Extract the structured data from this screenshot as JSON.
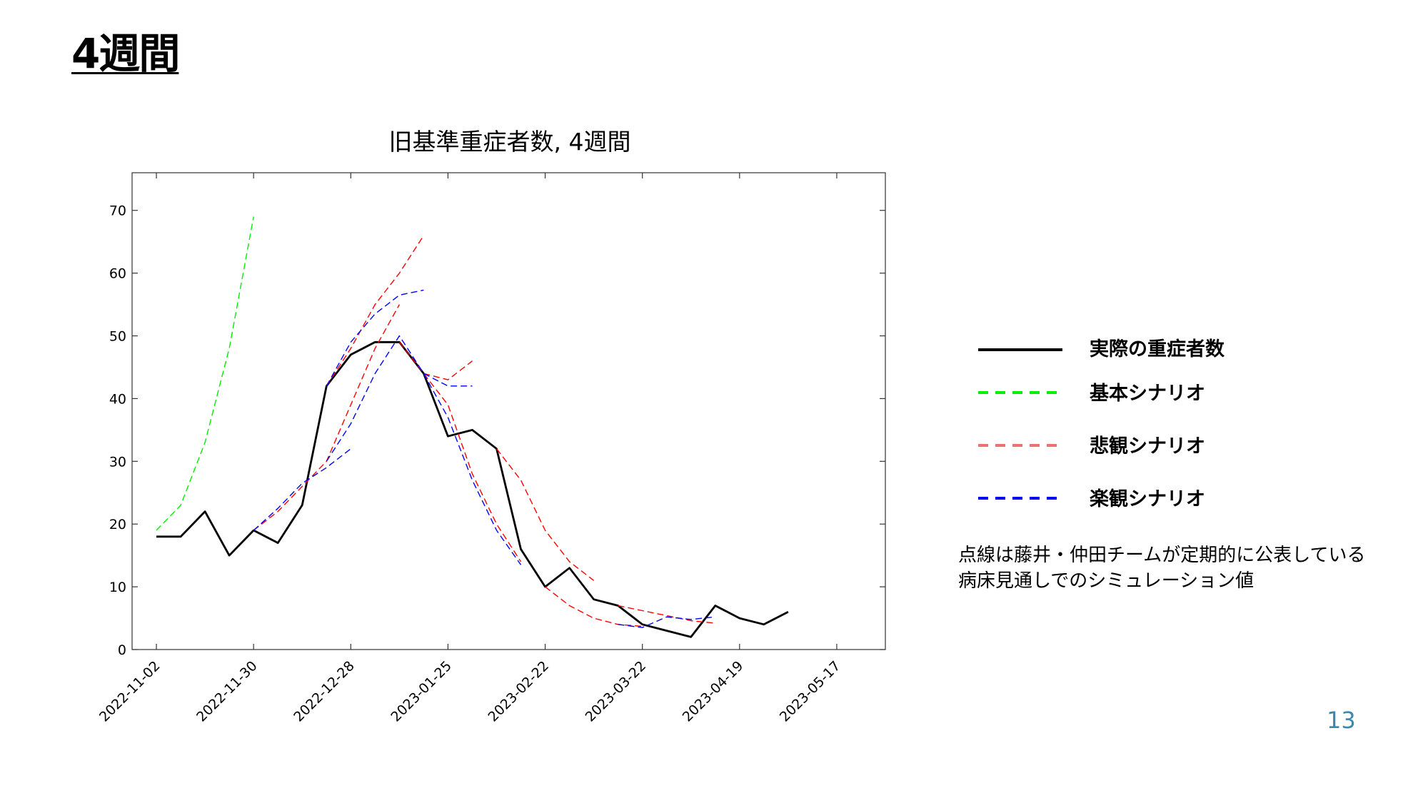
{
  "slide": {
    "title": "4週間",
    "page_number": "13"
  },
  "legend": {
    "items": [
      {
        "label": "実際の重症者数",
        "color": "#000000",
        "dashed": false
      },
      {
        "label": "基本シナリオ",
        "color": "#00ee00",
        "dashed": true
      },
      {
        "label": "悲観シナリオ",
        "color": "#f07070",
        "dashed": true
      },
      {
        "label": "楽観シナリオ",
        "color": "#0000ee",
        "dashed": true
      }
    ]
  },
  "note": {
    "line1": "点線は藤井・仲田チームが定期的に公表している",
    "line2": "病床見通しでのシミュレーション値"
  },
  "chart_data": {
    "type": "line",
    "title": "旧基準重症者数, 4週間",
    "xlabel": "",
    "ylabel": "",
    "x_ticks": [
      "2022-11-02",
      "2022-11-30",
      "2022-12-28",
      "2023-01-25",
      "2023-02-22",
      "2023-03-22",
      "2023-04-19",
      "2023-05-17"
    ],
    "xlim": [
      "2022-10-26",
      "2023-05-31"
    ],
    "ylim": [
      0,
      76
    ],
    "y_ticks": [
      0,
      10,
      20,
      30,
      40,
      50,
      60,
      70
    ],
    "grid": false,
    "series": [
      {
        "name": "実際の重症者数",
        "color": "#000000",
        "style": "solid",
        "points": [
          [
            "2022-11-02",
            18
          ],
          [
            "2022-11-09",
            18
          ],
          [
            "2022-11-16",
            22
          ],
          [
            "2022-11-23",
            15
          ],
          [
            "2022-11-30",
            19
          ],
          [
            "2022-12-07",
            17
          ],
          [
            "2022-12-14",
            23
          ],
          [
            "2022-12-21",
            42
          ],
          [
            "2022-12-28",
            47
          ],
          [
            "2023-01-04",
            49
          ],
          [
            "2023-01-11",
            49
          ],
          [
            "2023-01-18",
            44
          ],
          [
            "2023-01-25",
            34
          ],
          [
            "2023-02-01",
            35
          ],
          [
            "2023-02-08",
            32
          ],
          [
            "2023-02-15",
            16
          ],
          [
            "2023-02-22",
            10
          ],
          [
            "2023-03-01",
            13
          ],
          [
            "2023-03-08",
            8
          ],
          [
            "2023-03-15",
            7
          ],
          [
            "2023-03-22",
            4
          ],
          [
            "2023-03-29",
            3
          ],
          [
            "2023-04-05",
            2
          ],
          [
            "2023-04-12",
            7
          ],
          [
            "2023-04-19",
            5
          ],
          [
            "2023-04-26",
            4
          ],
          [
            "2023-05-03",
            6
          ]
        ]
      },
      {
        "name": "基本シナリオ",
        "color": "#00ee00",
        "style": "dashed",
        "segments": [
          [
            [
              "2022-11-02",
              19
            ],
            [
              "2022-11-09",
              23
            ],
            [
              "2022-11-16",
              33
            ],
            [
              "2022-11-23",
              48
            ],
            [
              "2022-11-30",
              69
            ]
          ]
        ]
      },
      {
        "name": "悲観シナリオ",
        "color": "#ff0000",
        "style": "dashed",
        "segments": [
          [
            [
              "2022-11-30",
              19
            ],
            [
              "2022-12-07",
              22
            ],
            [
              "2022-12-14",
              26
            ],
            [
              "2022-12-21",
              30
            ],
            [
              "2022-12-28",
              39
            ],
            [
              "2023-01-04",
              48
            ],
            [
              "2023-01-11",
              55
            ]
          ],
          [
            [
              "2022-12-21",
              42
            ],
            [
              "2022-12-28",
              48
            ],
            [
              "2023-01-04",
              55
            ],
            [
              "2023-01-11",
              60
            ],
            [
              "2023-01-18",
              66
            ]
          ],
          [
            [
              "2023-01-18",
              44
            ],
            [
              "2023-01-25",
              43
            ],
            [
              "2023-02-01",
              46
            ]
          ],
          [
            [
              "2023-01-11",
              49
            ],
            [
              "2023-01-18",
              44
            ],
            [
              "2023-01-25",
              39
            ],
            [
              "2023-02-01",
              28
            ],
            [
              "2023-02-08",
              20
            ],
            [
              "2023-02-15",
              14
            ]
          ],
          [
            [
              "2023-02-08",
              32
            ],
            [
              "2023-02-15",
              27
            ],
            [
              "2023-02-22",
              19
            ],
            [
              "2023-03-01",
              14
            ],
            [
              "2023-03-08",
              11
            ]
          ],
          [
            [
              "2023-02-22",
              10
            ],
            [
              "2023-03-01",
              7
            ],
            [
              "2023-03-08",
              5
            ],
            [
              "2023-03-15",
              4
            ],
            [
              "2023-03-22",
              3.7
            ]
          ],
          [
            [
              "2023-03-15",
              7
            ],
            [
              "2023-03-22",
              6.2
            ],
            [
              "2023-03-29",
              5.4
            ],
            [
              "2023-04-05",
              4.6
            ],
            [
              "2023-04-12",
              4.2
            ]
          ]
        ]
      },
      {
        "name": "楽観シナリオ",
        "color": "#0000ff",
        "style": "dashed",
        "segments": [
          [
            [
              "2022-11-30",
              19
            ],
            [
              "2022-12-07",
              22.5
            ],
            [
              "2022-12-14",
              26.5
            ],
            [
              "2022-12-21",
              29
            ],
            [
              "2022-12-28",
              32
            ]
          ],
          [
            [
              "2022-12-21",
              42
            ],
            [
              "2022-12-28",
              49
            ],
            [
              "2023-01-04",
              53.5
            ],
            [
              "2023-01-11",
              56.5
            ],
            [
              "2023-01-18",
              57.3
            ]
          ],
          [
            [
              "2022-12-21",
              30
            ],
            [
              "2022-12-28",
              36
            ],
            [
              "2023-01-04",
              44
            ],
            [
              "2023-01-11",
              50
            ],
            [
              "2023-01-18",
              44
            ]
          ],
          [
            [
              "2023-01-18",
              44
            ],
            [
              "2023-01-25",
              42
            ],
            [
              "2023-02-01",
              42
            ]
          ],
          [
            [
              "2023-01-18",
              44
            ],
            [
              "2023-01-25",
              37
            ],
            [
              "2023-02-01",
              27
            ],
            [
              "2023-02-08",
              19
            ],
            [
              "2023-02-15",
              13.5
            ]
          ],
          [
            [
              "2023-03-15",
              4
            ],
            [
              "2023-03-22",
              3.5
            ],
            [
              "2023-03-29",
              5.2
            ],
            [
              "2023-04-05",
              4.8
            ],
            [
              "2023-04-12",
              5.2
            ]
          ]
        ]
      }
    ]
  }
}
